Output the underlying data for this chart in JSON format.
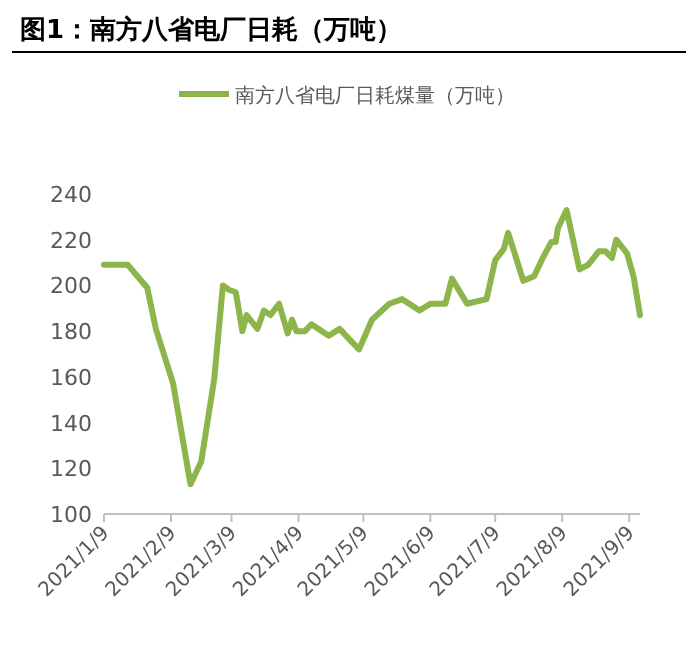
{
  "chart_data": {
    "type": "line",
    "title": "图1：南方八省电厂日耗（万吨）",
    "x": [
      "2021-01-09",
      "2021-01-20",
      "2021-01-29",
      "2021-02-02",
      "2021-02-10",
      "2021-02-18",
      "2021-02-23",
      "2021-03-01",
      "2021-03-05",
      "2021-03-08",
      "2021-03-11",
      "2021-03-14",
      "2021-03-16",
      "2021-03-21",
      "2021-03-24",
      "2021-03-27",
      "2021-03-31",
      "2021-04-04",
      "2021-04-06",
      "2021-04-08",
      "2021-04-12",
      "2021-04-15",
      "2021-04-23",
      "2021-04-28",
      "2021-05-04",
      "2021-05-07",
      "2021-05-13",
      "2021-05-21",
      "2021-05-27",
      "2021-06-04",
      "2021-06-09",
      "2021-06-16",
      "2021-06-19",
      "2021-06-26",
      "2021-07-05",
      "2021-07-09",
      "2021-07-13",
      "2021-07-15",
      "2021-07-22",
      "2021-07-27",
      "2021-07-31",
      "2021-08-04",
      "2021-08-06",
      "2021-08-07",
      "2021-08-11",
      "2021-08-17",
      "2021-08-21",
      "2021-08-26",
      "2021-08-29",
      "2021-09-01",
      "2021-09-03",
      "2021-09-08",
      "2021-09-11",
      "2021-09-14"
    ],
    "series": [
      {
        "name": "南方八省电厂日耗煤量（万吨）",
        "color": "#8db54b",
        "values": [
          209,
          209,
          199,
          181,
          157,
          113,
          123,
          159,
          200,
          198,
          197,
          180,
          187,
          181,
          189,
          187,
          192,
          179,
          185,
          180,
          180,
          183,
          178,
          181,
          175,
          172,
          185,
          192,
          194,
          189,
          192,
          192,
          203,
          192,
          194,
          211,
          216,
          223,
          202,
          204,
          212,
          219,
          219,
          225,
          233,
          207,
          209,
          215,
          215,
          212,
          220,
          214,
          204,
          187
        ]
      }
    ],
    "xlim": [
      "2021-01-09",
      "2021-09-14"
    ],
    "xticks": [
      {
        "value": "2021-01-09",
        "label": "2021/1/9"
      },
      {
        "value": "2021-02-09",
        "label": "2021/2/9"
      },
      {
        "value": "2021-03-09",
        "label": "2021/3/9"
      },
      {
        "value": "2021-04-09",
        "label": "2021/4/9"
      },
      {
        "value": "2021-05-09",
        "label": "2021/5/9"
      },
      {
        "value": "2021-06-09",
        "label": "2021/6/9"
      },
      {
        "value": "2021-07-09",
        "label": "2021/7/9"
      },
      {
        "value": "2021-08-09",
        "label": "2021/8/9"
      },
      {
        "value": "2021-09-09",
        "label": "2021/9/9"
      }
    ],
    "ylim": [
      100,
      240
    ],
    "yticks": [
      100,
      120,
      140,
      160,
      180,
      200,
      220,
      240
    ],
    "legend": "top",
    "grid": false,
    "marker": "none",
    "line_style": "solid"
  }
}
